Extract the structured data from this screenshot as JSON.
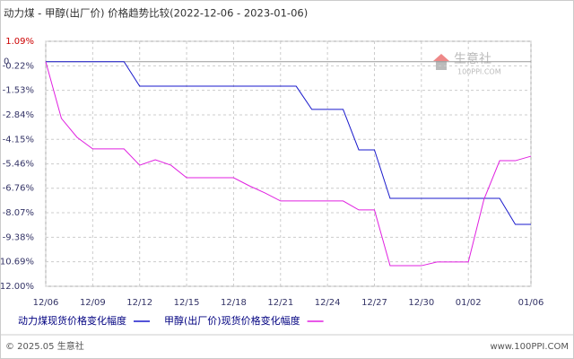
{
  "chart_data": {
    "type": "line",
    "title": "动力煤 - 甲醇(出厂价) 价格趋势比较(2022-12-06 - 2023-01-06)",
    "categories": [
      "12/06",
      null,
      null,
      "12/09",
      null,
      null,
      "12/12",
      null,
      null,
      "12/15",
      null,
      null,
      "12/18",
      null,
      null,
      "12/21",
      null,
      null,
      "12/24",
      null,
      null,
      "12/27",
      null,
      null,
      "12/30",
      null,
      null,
      "01/02",
      null,
      null,
      null,
      "01/06"
    ],
    "series": [
      {
        "name": "动力煤现货价格变化幅度",
        "color": "#1a1acc",
        "values": [
          0,
          0,
          0,
          0,
          0,
          0,
          -1.31,
          -1.31,
          -1.31,
          -1.31,
          -1.31,
          -1.31,
          -1.31,
          -1.31,
          -1.31,
          -1.31,
          -1.31,
          -2.55,
          -2.55,
          -2.55,
          -4.71,
          -4.71,
          -7.3,
          -7.3,
          -7.3,
          -7.3,
          -7.3,
          -7.3,
          -7.3,
          -7.3,
          -8.69,
          -8.69
        ]
      },
      {
        "name": "甲醇(出厂价)现货价格变化幅度",
        "color": "#e020e0",
        "values": [
          0,
          -3.03,
          -4.04,
          -4.66,
          -4.66,
          -4.66,
          -5.53,
          -5.24,
          -5.53,
          -6.2,
          -6.2,
          -6.2,
          -6.2,
          -6.63,
          -7.01,
          -7.44,
          -7.44,
          -7.44,
          -7.44,
          -7.44,
          -7.92,
          -7.92,
          -10.9,
          -10.9,
          -10.9,
          -10.7,
          -10.7,
          -10.7,
          -7.35,
          -5.29,
          -5.29,
          -5.05
        ]
      }
    ],
    "ylim": [
      -12.0,
      1.09
    ],
    "yticks": [
      {
        "value": 1.09,
        "label": "1.09%"
      },
      {
        "value": -0.22,
        "label": "-0.22%"
      },
      {
        "value": -1.53,
        "label": "-1.53%"
      },
      {
        "value": -2.84,
        "label": "-2.84%"
      },
      {
        "value": -4.15,
        "label": "-4.15%"
      },
      {
        "value": -5.46,
        "label": "-5.46%"
      },
      {
        "value": -6.76,
        "label": "-6.76%"
      },
      {
        "value": -8.07,
        "label": "-8.07%"
      },
      {
        "value": -9.38,
        "label": "-9.38%"
      },
      {
        "value": -10.69,
        "label": "-10.69%"
      },
      {
        "value": -12.0,
        "label": "-12.00%"
      }
    ],
    "zero_label": "0",
    "grid": true,
    "watermark": {
      "name": "生意社",
      "site": "100PPI.COM"
    },
    "footer": {
      "copyright": "© 2025.05 生意社",
      "url": "www.100PPI.COM"
    }
  }
}
